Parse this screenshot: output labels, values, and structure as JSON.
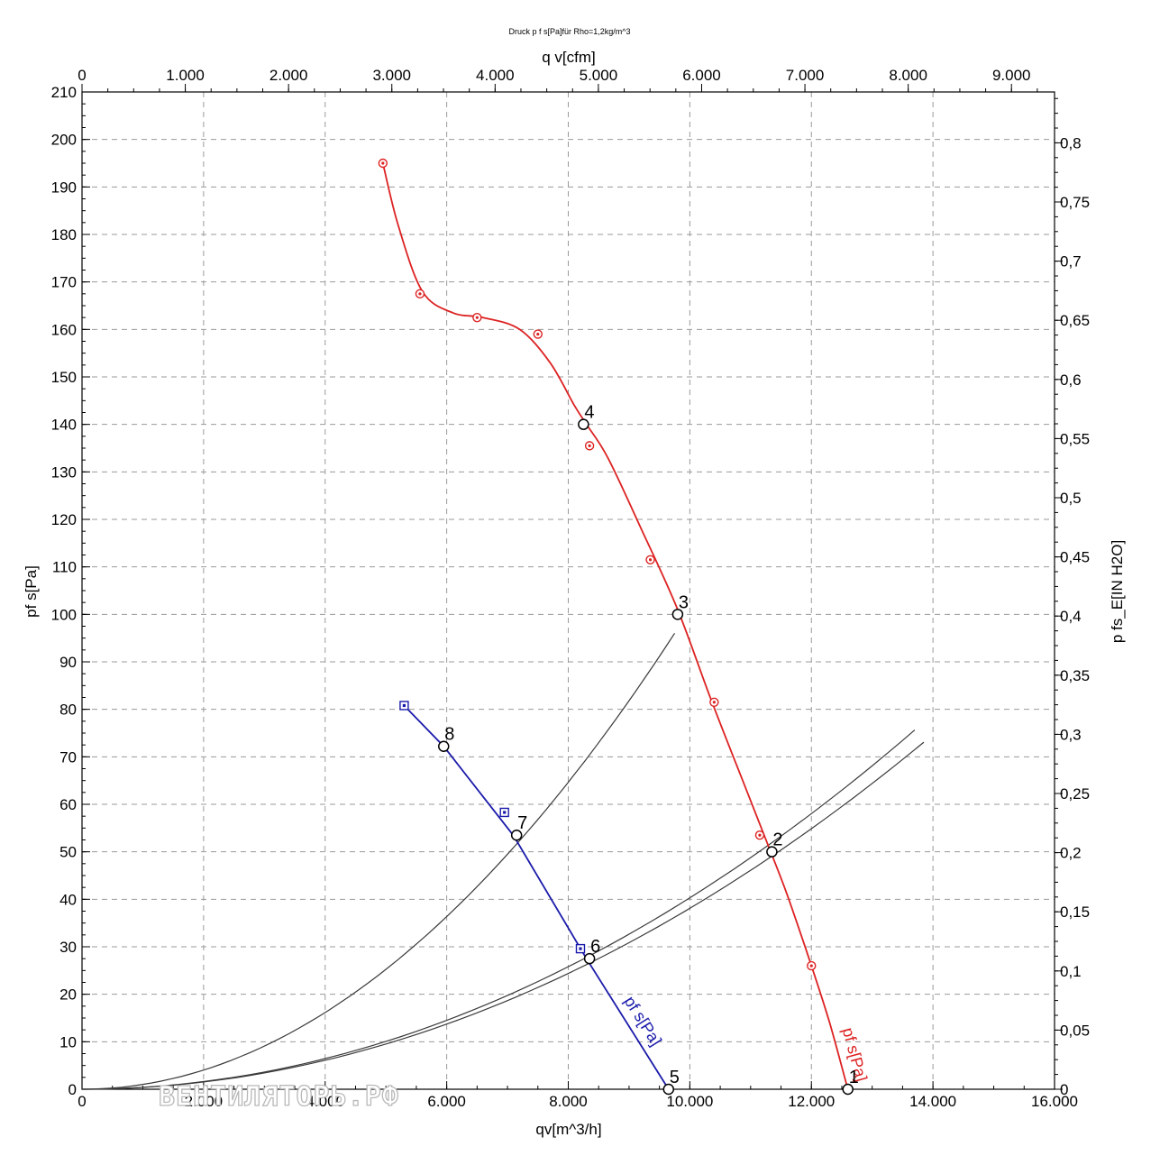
{
  "chart_data": {
    "type": "line",
    "title": "Druck p f s[Pa]für Rho=1,2kg/m^3",
    "xlabel": "qv[m^3/h]",
    "x2label": "q v[cfm]",
    "ylabel": "pf s[Pa]",
    "y2label": "p fs_E[IN H2O]",
    "xlim": [
      0,
      16000
    ],
    "ylim": [
      0,
      210
    ],
    "x2lim": [
      0,
      9417
    ],
    "y2lim": [
      0,
      0.843
    ],
    "grid": true,
    "x_ticks": [
      0,
      2000,
      4000,
      6000,
      8000,
      10000,
      12000,
      14000,
      16000
    ],
    "x_tick_labels": [
      "0",
      "2.000",
      "4.000",
      "6.000",
      "8.000",
      "10.000",
      "12.000",
      "14.000",
      "16.000"
    ],
    "y_ticks": [
      0,
      10,
      20,
      30,
      40,
      50,
      60,
      70,
      80,
      90,
      100,
      110,
      120,
      130,
      140,
      150,
      160,
      170,
      180,
      190,
      200,
      210
    ],
    "y_tick_labels": [
      "0",
      "10",
      "20",
      "30",
      "40",
      "50",
      "60",
      "70",
      "80",
      "90",
      "100",
      "110",
      "120",
      "130",
      "140",
      "150",
      "160",
      "170",
      "180",
      "190",
      "200",
      "210"
    ],
    "x2_ticks": [
      0,
      1000,
      2000,
      3000,
      4000,
      5000,
      6000,
      7000,
      8000,
      9000
    ],
    "x2_tick_labels": [
      "0",
      "1.000",
      "2.000",
      "3.000",
      "4.000",
      "5.000",
      "6.000",
      "7.000",
      "8.000",
      "9.000"
    ],
    "y2_ticks": [
      0,
      0.05,
      0.1,
      0.15,
      0.2,
      0.25,
      0.3,
      0.35,
      0.4,
      0.45,
      0.5,
      0.55,
      0.6,
      0.65,
      0.7,
      0.75,
      0.8
    ],
    "y2_tick_labels": [
      "0",
      "0,05",
      "0,1",
      "0,15",
      "0,2",
      "0,25",
      "0,3",
      "0,35",
      "0,4",
      "0,45",
      "0,5",
      "0,55",
      "0,6",
      "0,65",
      "0,7",
      "0,75",
      "0,8"
    ],
    "series": [
      {
        "label": "pf s[Pa]",
        "color": "#dd2222",
        "curve_x": [
          4950,
          5200,
          5600,
          6100,
          6600,
          7200,
          7700,
          8100,
          8300,
          8650,
          9200,
          9800,
          10350,
          10900,
          11300,
          11600,
          12000,
          12300,
          12600
        ],
        "curve_y": [
          195,
          182,
          168,
          163.5,
          162.5,
          160,
          153,
          144,
          140,
          133,
          118,
          101,
          82,
          64,
          51,
          41,
          26,
          14,
          0
        ],
        "x": [
          4950,
          5560,
          6500,
          7500,
          8350,
          9350,
          10400,
          11150,
          12000,
          12600
        ],
        "y": [
          195,
          167.5,
          162.5,
          159,
          135.5,
          111.5,
          81.5,
          53.5,
          26,
          0
        ]
      },
      {
        "label": "pf s[Pa]",
        "color": "#1a1aaa",
        "curve_x": [
          5300,
          5950,
          7100,
          8300,
          9650
        ],
        "curve_y": [
          80.8,
          72.2,
          53.4,
          27.5,
          0
        ],
        "x": [
          5300,
          6950,
          8200
        ],
        "y": [
          80.8,
          58.3,
          29.6
        ]
      }
    ],
    "system_curves": [
      {
        "k": 1.01e-06,
        "x_end": 9750
      },
      {
        "k": 4.03e-07,
        "x_end": 13700
      },
      {
        "k": 3.81e-07,
        "x_end": 13850
      }
    ],
    "operating_points": [
      {
        "label": "1",
        "x": 12600,
        "y": 0
      },
      {
        "label": "2",
        "x": 11350,
        "y": 50
      },
      {
        "label": "3",
        "x": 9800,
        "y": 100
      },
      {
        "label": "4",
        "x": 8250,
        "y": 140
      },
      {
        "label": "5",
        "x": 9650,
        "y": 0
      },
      {
        "label": "6",
        "x": 8350,
        "y": 27.5
      },
      {
        "label": "7",
        "x": 7150,
        "y": 53.5
      },
      {
        "label": "8",
        "x": 5950,
        "y": 72.2
      }
    ],
    "watermark": "ВЕНТИЛЯТОРЬ.РФ"
  }
}
